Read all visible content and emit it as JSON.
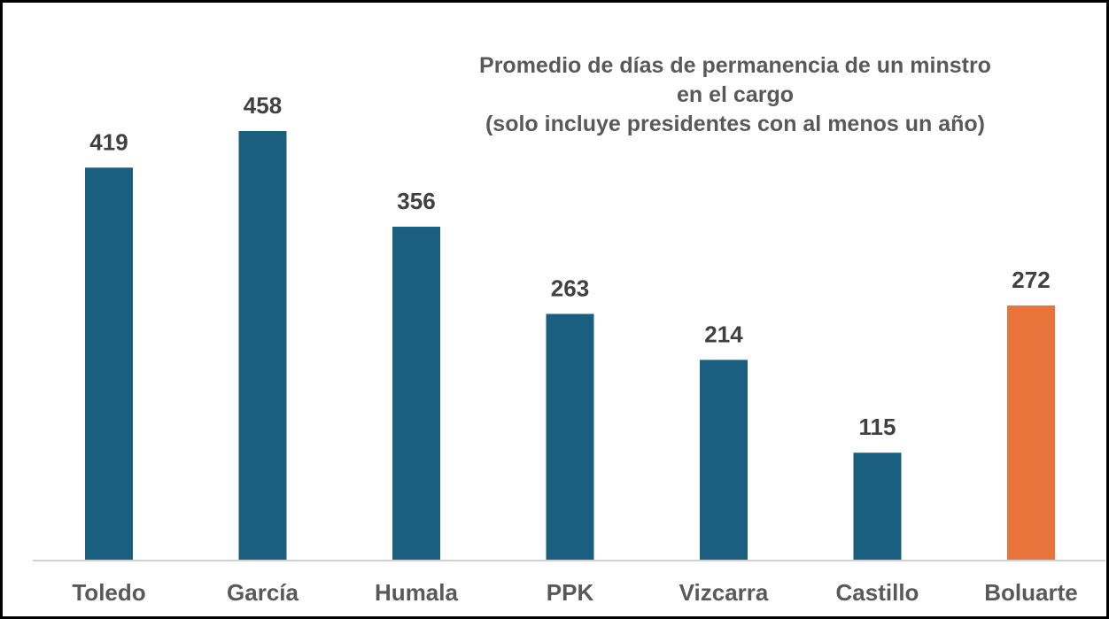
{
  "chart_data": {
    "type": "bar",
    "title_lines": [
      "Promedio de días de permanencia de un minstro",
      "en el cargo",
      "(solo incluye presidentes con al menos un año)"
    ],
    "categories": [
      "Toledo",
      "García",
      "Humala",
      "PPK",
      "Vizcarra",
      "Castillo",
      "Boluarte"
    ],
    "values": [
      419,
      458,
      356,
      263,
      214,
      115,
      272
    ],
    "colors": [
      "#1a5e80",
      "#1a5e80",
      "#1a5e80",
      "#1a5e80",
      "#1a5e80",
      "#1a5e80",
      "#e8743b"
    ],
    "xlabel": "",
    "ylabel": "",
    "ylim": [
      0,
      458
    ],
    "grid": false,
    "legend": "none",
    "data_labels": true
  }
}
